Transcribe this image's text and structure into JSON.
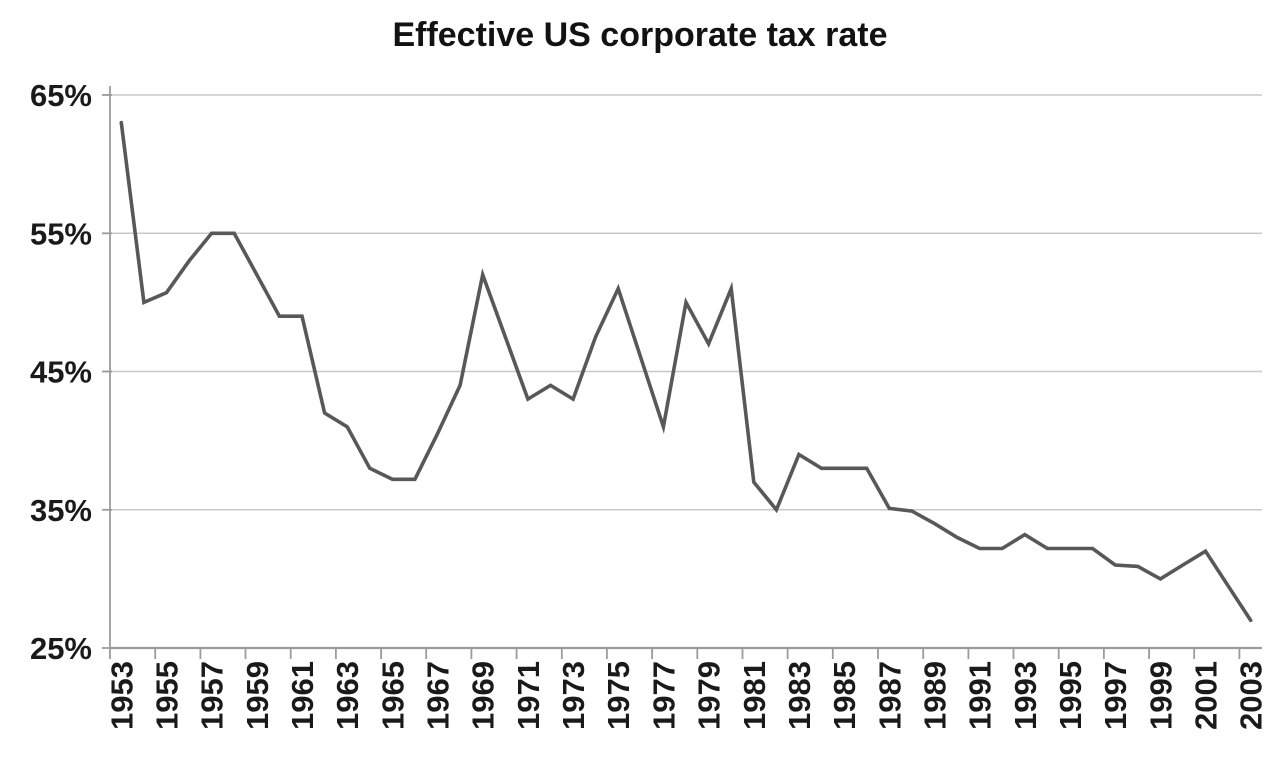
{
  "page": {
    "background": "#ffffff"
  },
  "chart_data": {
    "type": "line",
    "title": "Effective US corporate tax rate",
    "xlabel": "",
    "ylabel": "",
    "x": [
      1953,
      1954,
      1955,
      1956,
      1957,
      1958,
      1959,
      1960,
      1961,
      1962,
      1963,
      1964,
      1965,
      1966,
      1967,
      1968,
      1969,
      1970,
      1971,
      1972,
      1973,
      1974,
      1975,
      1976,
      1977,
      1978,
      1979,
      1980,
      1981,
      1982,
      1983,
      1984,
      1985,
      1986,
      1987,
      1988,
      1989,
      1990,
      1991,
      1992,
      1993,
      1994,
      1995,
      1996,
      1997,
      1998,
      1999,
      2000,
      2001,
      2002,
      2003
    ],
    "values": [
      63.0,
      50.0,
      50.7,
      53.0,
      55.0,
      55.0,
      52.0,
      49.0,
      49.0,
      42.0,
      41.0,
      38.0,
      37.2,
      37.2,
      40.5,
      44.0,
      52.0,
      47.5,
      43.0,
      44.0,
      43.0,
      47.5,
      51.0,
      46.0,
      41.0,
      50.0,
      47.0,
      51.0,
      37.0,
      35.0,
      39.0,
      38.0,
      38.0,
      38.0,
      35.1,
      34.9,
      34.0,
      33.0,
      32.2,
      32.2,
      33.2,
      32.2,
      32.2,
      32.2,
      31.0,
      30.9,
      30.0,
      31.0,
      32.0,
      29.5,
      27.0
    ],
    "ylim": [
      25,
      65
    ],
    "y_gridlines": [
      65,
      55,
      45,
      35,
      25
    ],
    "y_tick_labels": [
      "65%",
      "55%",
      "45%",
      "35%",
      "25%"
    ],
    "x_tick_labels": [
      "1953",
      "1955",
      "1957",
      "1959",
      "1961",
      "1963",
      "1965",
      "1967",
      "1969",
      "1971",
      "1973",
      "1975",
      "1977",
      "1979",
      "1981",
      "1983",
      "1985",
      "1987",
      "1989",
      "1991",
      "1993",
      "1995",
      "1997",
      "1999",
      "2001",
      "2003"
    ],
    "x_tick_label_rotation": -90,
    "grid": "horizontal",
    "legend": "none",
    "colors": {
      "line": "#585858",
      "gridline": "#c8c8c8",
      "axis": "#9b9b9b",
      "text": "#1a1a1a",
      "background": "#ffffff"
    }
  }
}
